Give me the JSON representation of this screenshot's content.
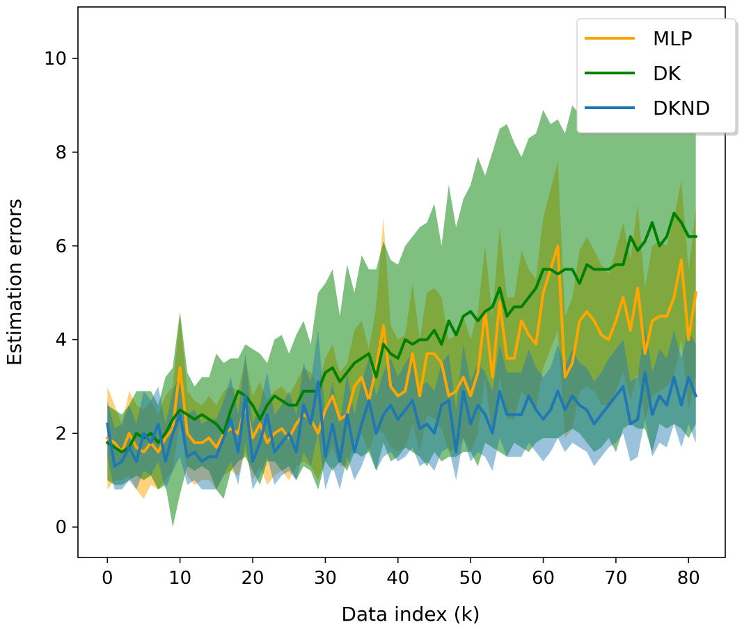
{
  "chart_data": {
    "type": "line",
    "title": "",
    "xlabel": "Data index (k)",
    "ylabel": "Estimation errors",
    "xlim": [
      -4.05,
      85.05
    ],
    "ylim": [
      -0.65,
      11.1
    ],
    "xticks": [
      0,
      10,
      20,
      30,
      40,
      50,
      60,
      70,
      80
    ],
    "xtick_labels": [
      "0",
      "10",
      "20",
      "30",
      "40",
      "50",
      "60",
      "70",
      "80"
    ],
    "yticks": [
      0,
      2,
      4,
      6,
      8,
      10
    ],
    "ytick_labels": [
      "0",
      "2",
      "4",
      "6",
      "8",
      "10"
    ],
    "grid": false,
    "legend_position": "top-right",
    "x_start": 0,
    "x_step": 1,
    "series": [
      {
        "name": "MLP",
        "color": "#ffa500",
        "band_alpha": 0.5,
        "mean": [
          1.9,
          1.8,
          1.6,
          2.0,
          1.7,
          1.6,
          1.8,
          1.6,
          1.9,
          2.1,
          3.4,
          2.0,
          1.8,
          1.8,
          1.9,
          1.7,
          2.0,
          2.1,
          2.0,
          2.6,
          1.9,
          2.2,
          1.8,
          2.0,
          2.1,
          1.9,
          2.2,
          2.4,
          2.3,
          2.0,
          2.5,
          2.8,
          2.3,
          2.4,
          3.0,
          3.2,
          2.7,
          3.4,
          4.3,
          3.0,
          2.8,
          2.9,
          3.7,
          2.8,
          3.7,
          3.7,
          3.5,
          2.8,
          2.9,
          3.2,
          2.8,
          3.3,
          4.6,
          3.2,
          4.8,
          3.6,
          3.6,
          4.4,
          4.1,
          3.9,
          5.0,
          5.5,
          6.0,
          3.2,
          3.5,
          4.4,
          4.6,
          4.4,
          4.1,
          4.0,
          4.4,
          4.9,
          4.2,
          5.1,
          3.7,
          4.4,
          4.5,
          4.5,
          4.9,
          5.7,
          4.0,
          5.0
        ],
        "upper": [
          3.0,
          2.6,
          2.2,
          2.9,
          2.6,
          2.5,
          2.7,
          2.4,
          2.8,
          3.0,
          4.5,
          2.9,
          2.7,
          2.6,
          2.8,
          2.6,
          2.9,
          3.0,
          2.9,
          3.6,
          2.8,
          3.1,
          2.7,
          2.9,
          3.0,
          2.8,
          3.1,
          3.4,
          3.3,
          3.0,
          3.6,
          3.9,
          3.3,
          3.5,
          4.2,
          4.4,
          3.8,
          4.7,
          6.6,
          4.3,
          4.0,
          4.1,
          5.2,
          4.0,
          5.0,
          5.1,
          4.9,
          4.0,
          4.1,
          4.5,
          4.0,
          4.6,
          6.0,
          4.5,
          6.4,
          4.9,
          4.9,
          5.9,
          5.5,
          5.3,
          6.6,
          7.2,
          7.8,
          4.5,
          4.9,
          5.9,
          6.2,
          5.9,
          5.6,
          5.4,
          5.9,
          6.5,
          5.7,
          6.9,
          5.1,
          6.0,
          6.1,
          6.0,
          6.6,
          7.4,
          5.5,
          6.8
        ],
        "lower": [
          0.8,
          1.0,
          1.0,
          1.1,
          0.8,
          0.6,
          0.9,
          0.8,
          1.0,
          1.2,
          2.3,
          1.1,
          0.9,
          1.0,
          1.0,
          0.8,
          1.1,
          1.2,
          1.1,
          1.6,
          1.0,
          1.3,
          0.9,
          1.1,
          1.2,
          1.0,
          1.3,
          1.4,
          1.3,
          1.0,
          1.4,
          1.7,
          1.3,
          1.3,
          1.8,
          2.0,
          1.6,
          2.1,
          2.0,
          1.7,
          1.6,
          1.7,
          2.2,
          1.6,
          2.4,
          2.3,
          2.1,
          1.6,
          1.7,
          1.9,
          1.6,
          2.0,
          3.2,
          1.9,
          3.2,
          2.3,
          2.3,
          2.9,
          2.7,
          2.5,
          3.4,
          3.8,
          4.2,
          1.9,
          2.1,
          2.9,
          3.0,
          2.9,
          2.6,
          2.6,
          2.9,
          3.3,
          2.7,
          3.3,
          2.3,
          2.8,
          2.9,
          3.0,
          3.2,
          4.0,
          2.5,
          3.2
        ]
      },
      {
        "name": "DK",
        "color": "#008000",
        "band_alpha": 0.5,
        "mean": [
          1.8,
          1.7,
          1.6,
          1.7,
          2.0,
          1.9,
          2.0,
          1.8,
          2.0,
          2.3,
          2.5,
          2.4,
          2.3,
          2.4,
          2.3,
          2.2,
          2.0,
          2.5,
          2.9,
          2.8,
          2.6,
          2.3,
          2.6,
          2.8,
          2.7,
          2.6,
          2.6,
          2.9,
          2.9,
          2.9,
          3.3,
          3.4,
          3.1,
          3.3,
          3.5,
          3.6,
          3.7,
          3.2,
          3.9,
          3.7,
          3.6,
          4.0,
          3.9,
          4.0,
          4.0,
          4.2,
          3.9,
          4.4,
          4.1,
          4.5,
          4.6,
          4.4,
          4.6,
          4.7,
          5.1,
          4.5,
          4.7,
          4.7,
          4.9,
          5.1,
          5.5,
          5.5,
          5.4,
          5.5,
          5.5,
          5.2,
          5.6,
          5.5,
          5.5,
          5.5,
          5.6,
          5.6,
          6.2,
          5.9,
          6.1,
          6.5,
          6.0,
          6.2,
          6.7,
          6.5,
          6.2,
          6.2
        ],
        "upper": [
          2.6,
          2.5,
          2.4,
          2.6,
          2.9,
          2.9,
          2.9,
          2.6,
          3.2,
          3.4,
          4.6,
          3.3,
          3.0,
          3.2,
          3.2,
          3.7,
          3.5,
          3.6,
          3.6,
          3.9,
          3.8,
          3.7,
          3.5,
          4.0,
          4.1,
          3.7,
          4.1,
          4.4,
          3.9,
          5.0,
          5.2,
          5.5,
          4.5,
          5.6,
          5.0,
          5.8,
          5.5,
          5.5,
          6.1,
          5.7,
          5.6,
          6.0,
          6.2,
          6.4,
          6.5,
          6.9,
          6.0,
          7.3,
          6.4,
          7.0,
          7.3,
          7.9,
          7.5,
          8.0,
          8.5,
          8.6,
          8.2,
          7.9,
          8.3,
          8.4,
          8.9,
          8.6,
          8.7,
          8.4,
          9.0,
          8.8,
          8.7,
          9.1,
          8.5,
          8.9,
          8.5,
          9.4,
          9.6,
          9.0,
          9.7,
          9.9,
          9.2,
          9.4,
          9.5,
          9.0,
          8.7,
          8.6
        ],
        "lower": [
          1.0,
          0.9,
          0.9,
          1.0,
          1.1,
          1.0,
          1.1,
          0.8,
          0.9,
          0.0,
          0.7,
          1.3,
          1.2,
          1.3,
          1.2,
          0.8,
          0.6,
          1.2,
          1.4,
          1.5,
          1.2,
          0.9,
          1.4,
          1.4,
          1.2,
          1.3,
          1.0,
          1.3,
          1.2,
          0.8,
          1.4,
          1.2,
          1.4,
          1.2,
          1.6,
          1.5,
          1.6,
          1.2,
          1.8,
          1.4,
          1.5,
          1.7,
          1.6,
          1.5,
          1.3,
          1.6,
          1.4,
          1.5,
          1.5,
          1.6,
          1.6,
          1.3,
          1.8,
          1.7,
          1.6,
          1.5,
          1.8,
          1.7,
          1.6,
          1.8,
          1.9,
          1.9,
          1.9,
          2.0,
          2.1,
          2.0,
          1.8,
          1.6,
          1.7,
          1.9,
          1.6,
          2.1,
          2.2,
          2.1,
          2.1,
          1.6,
          2.2,
          2.1,
          2.2,
          2.1,
          1.9,
          2.2
        ]
      },
      {
        "name": "DKND",
        "color": "#1f77b4",
        "band_alpha": 0.45,
        "mean": [
          2.2,
          1.3,
          1.4,
          1.7,
          1.4,
          2.0,
          1.8,
          2.2,
          1.4,
          2.0,
          2.4,
          1.5,
          1.6,
          1.4,
          1.5,
          1.5,
          1.9,
          2.3,
          1.6,
          2.8,
          1.4,
          1.8,
          2.4,
          1.6,
          1.8,
          2.0,
          1.6,
          2.6,
          2.2,
          3.1,
          1.5,
          2.2,
          1.4,
          2.4,
          1.6,
          2.2,
          2.7,
          2.0,
          2.4,
          2.6,
          2.3,
          2.5,
          2.7,
          2.1,
          2.2,
          2.0,
          2.6,
          2.7,
          1.6,
          2.9,
          2.2,
          2.6,
          2.4,
          2.0,
          2.9,
          2.4,
          2.4,
          2.4,
          2.8,
          2.5,
          2.3,
          2.5,
          2.9,
          2.5,
          2.8,
          2.6,
          2.5,
          2.2,
          2.4,
          2.6,
          2.8,
          3.0,
          2.2,
          2.3,
          3.3,
          2.4,
          2.8,
          2.6,
          3.2,
          2.6,
          3.2,
          2.8
        ],
        "upper": [
          2.7,
          2.1,
          2.2,
          2.6,
          2.2,
          2.9,
          2.7,
          3.0,
          2.2,
          2.9,
          3.3,
          2.4,
          2.5,
          2.2,
          2.3,
          2.3,
          2.7,
          3.2,
          2.4,
          3.7,
          2.2,
          2.6,
          3.3,
          2.4,
          2.6,
          2.9,
          2.4,
          3.5,
          3.1,
          4.2,
          2.4,
          3.1,
          2.2,
          3.3,
          2.4,
          3.1,
          3.6,
          2.8,
          3.3,
          3.6,
          3.2,
          3.5,
          3.7,
          3.0,
          3.1,
          2.9,
          3.5,
          3.7,
          2.5,
          3.9,
          3.1,
          3.5,
          3.3,
          2.9,
          3.9,
          3.3,
          3.3,
          3.3,
          3.8,
          3.4,
          3.2,
          3.4,
          3.9,
          3.4,
          3.8,
          3.5,
          3.4,
          3.1,
          3.3,
          3.6,
          3.8,
          4.0,
          3.1,
          3.2,
          4.3,
          3.3,
          3.8,
          3.6,
          4.2,
          3.6,
          4.2,
          3.9
        ],
        "lower": [
          1.5,
          0.8,
          0.8,
          1.0,
          0.8,
          1.2,
          1.1,
          1.4,
          0.8,
          1.2,
          1.5,
          0.9,
          1.0,
          0.8,
          0.8,
          0.8,
          1.1,
          1.4,
          0.9,
          1.8,
          0.8,
          1.1,
          1.5,
          0.9,
          1.1,
          1.2,
          1.0,
          1.6,
          1.3,
          2.0,
          0.8,
          1.3,
          0.8,
          1.5,
          1.0,
          1.3,
          1.7,
          1.2,
          1.5,
          1.6,
          1.4,
          1.5,
          1.7,
          1.3,
          1.4,
          1.2,
          1.6,
          1.7,
          1.0,
          1.9,
          1.4,
          1.6,
          1.5,
          1.2,
          1.9,
          1.5,
          1.5,
          1.5,
          1.8,
          1.6,
          1.4,
          1.6,
          1.9,
          1.6,
          1.8,
          1.7,
          1.6,
          1.3,
          1.5,
          1.7,
          1.8,
          2.0,
          1.4,
          1.5,
          2.3,
          1.5,
          1.8,
          1.7,
          2.2,
          1.7,
          2.2,
          1.8
        ]
      }
    ]
  }
}
